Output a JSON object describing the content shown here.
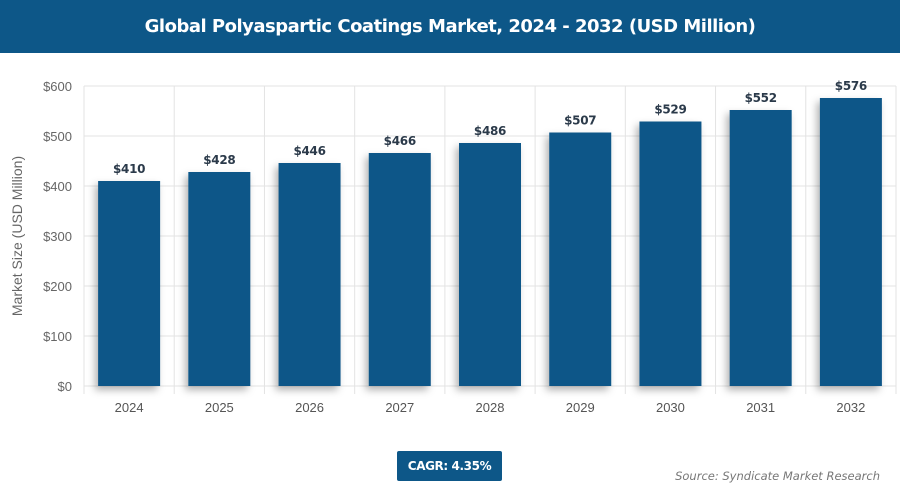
{
  "header": {
    "title": "Global Polyaspartic Coatings Market, 2024 - 2032 (USD Million)"
  },
  "chart_data": {
    "type": "bar",
    "title": "Global Polyaspartic Coatings Market, 2024 - 2032 (USD Million)",
    "categories": [
      "2024",
      "2025",
      "2026",
      "2027",
      "2028",
      "2029",
      "2030",
      "2031",
      "2032"
    ],
    "values": [
      410,
      428,
      446,
      466,
      486,
      507,
      529,
      552,
      576
    ],
    "data_labels": [
      "$410",
      "$428",
      "$446",
      "$466",
      "$486",
      "$507",
      "$529",
      "$552",
      "$576"
    ],
    "xlabel": "",
    "ylabel": "Market Size (USD Million)",
    "ylim": [
      0,
      600
    ],
    "yticks": [
      0,
      100,
      200,
      300,
      400,
      500,
      600
    ],
    "ytick_labels": [
      "$0",
      "$100",
      "$200",
      "$300",
      "$400",
      "$500",
      "$600"
    ],
    "grid": true,
    "bar_color": "#0d5788"
  },
  "footer": {
    "cagr": "CAGR: 4.35%",
    "source": "Source: Syndicate Market Research"
  }
}
